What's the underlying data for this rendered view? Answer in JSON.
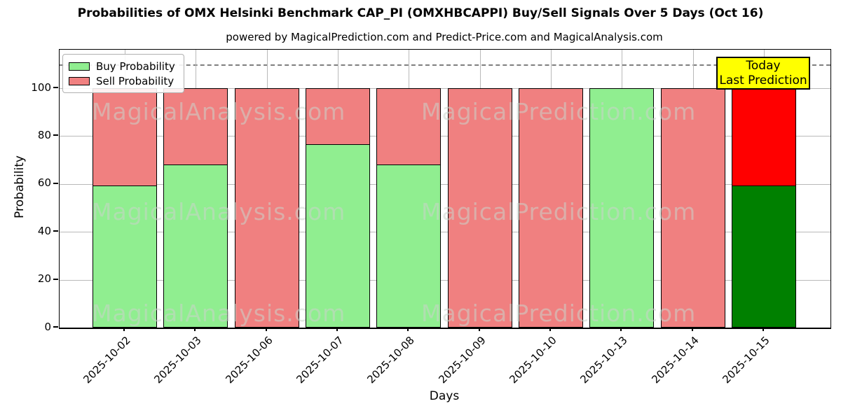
{
  "title": "Probabilities of OMX Helsinki Benchmark CAP_PI (OMXHBCAPPI) Buy/Sell Signals Over 5 Days (Oct 16)",
  "subtitle": "powered by MagicalPrediction.com and Predict-Price.com and MagicalAnalysis.com",
  "watermarks": [
    "MagicalAnalysis.com",
    "MagicalPrediction.com"
  ],
  "annotation": {
    "line1": "Today",
    "line2": "Last Prediction",
    "bg_color": "#ffff00"
  },
  "legend": [
    {
      "label": "Buy Probability",
      "color": "#90EE90"
    },
    {
      "label": "Sell Probability",
      "color": "#F08080"
    }
  ],
  "chart_data": {
    "type": "bar",
    "stacked": true,
    "title": "Probabilities of OMX Helsinki Benchmark CAP_PI (OMXHBCAPPI) Buy/Sell Signals Over 5 Days (Oct 16)",
    "xlabel": "Days",
    "ylabel": "Probability",
    "categories": [
      "2025-10-02",
      "2025-10-03",
      "2025-10-06",
      "2025-10-07",
      "2025-10-08",
      "2025-10-09",
      "2025-10-10",
      "2025-10-13",
      "2025-10-14",
      "2025-10-15"
    ],
    "series": [
      {
        "name": "Buy Probability",
        "color": "#90EE90",
        "values": [
          59.5,
          68,
          0,
          76.5,
          68,
          0,
          0,
          100,
          0,
          59.5
        ]
      },
      {
        "name": "Sell Probability",
        "color": "#F08080",
        "values": [
          40.5,
          32,
          100,
          23.5,
          32,
          100,
          100,
          0,
          100,
          40.5
        ]
      }
    ],
    "today_index": 9,
    "today_colors": {
      "buy": "#008000",
      "sell": "#FF0000"
    },
    "yticks": [
      0,
      20,
      40,
      60,
      80,
      100
    ],
    "ylim": [
      0,
      116
    ],
    "dashed_line_y": 110,
    "grid": true,
    "legend_position": "upper left"
  }
}
